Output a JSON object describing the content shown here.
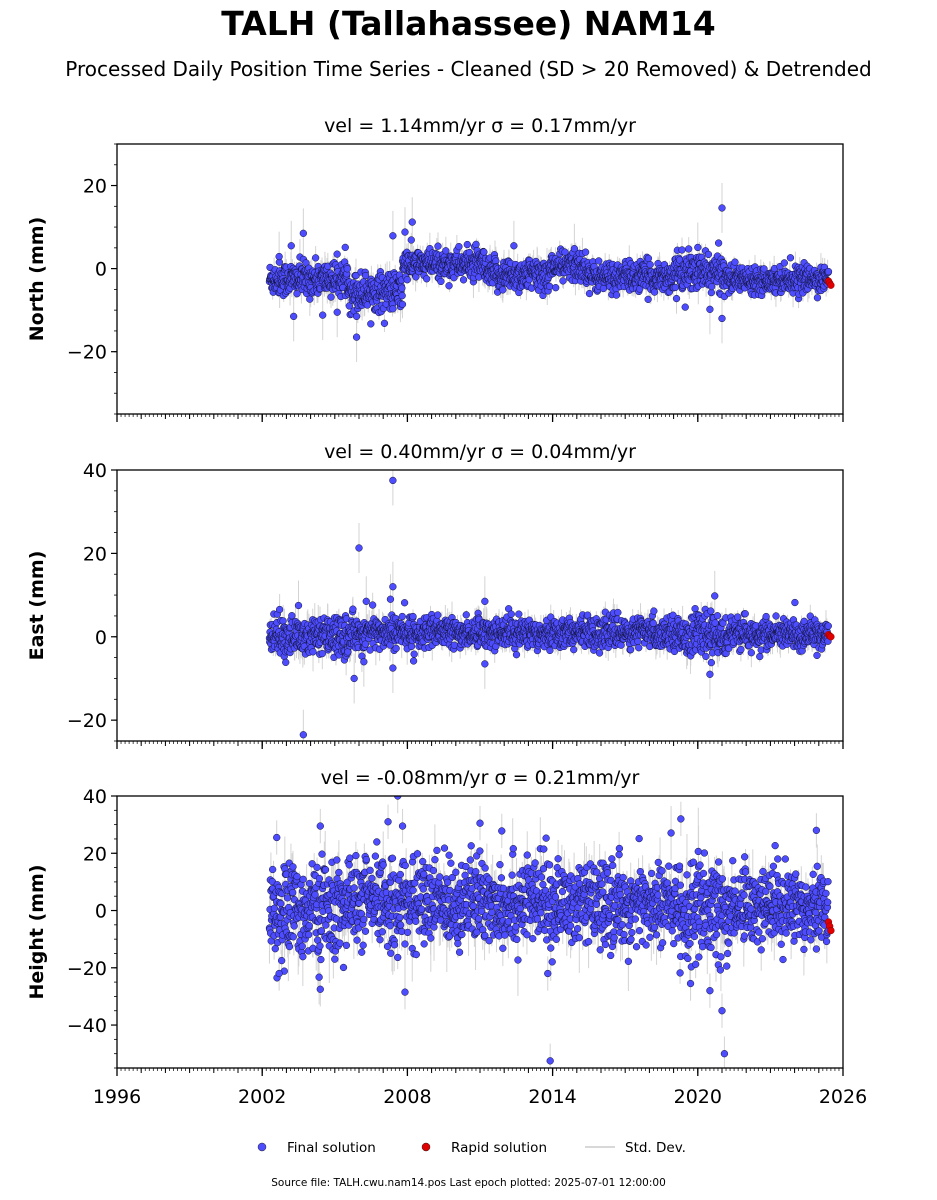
{
  "title": "TALH (Tallahassee) NAM14",
  "subtitle": "Processed Daily Position Time Series - Cleaned (SD > 20 Removed) & Detrended",
  "footer": "Source file: TALH.cwu.nam14.pos  Last epoch plotted: 2025-07-01 12:00:00",
  "colors": {
    "final": "#4d4dff",
    "rapid": "#e00000",
    "stddev": "#cccccc",
    "edge": "#111133"
  },
  "legend": [
    {
      "name": "Final solution",
      "marker": "circle",
      "color": "#4d4dff"
    },
    {
      "name": "Rapid solution",
      "marker": "circle",
      "color": "#e00000"
    },
    {
      "name": "Std. Dev.",
      "marker": "line",
      "color": "#cccccc"
    }
  ],
  "chart_data": [
    {
      "type": "scatter",
      "panel_title": "vel = 1.14mm/yr   σ = 0.17mm/yr",
      "ylabel": "North (mm)",
      "xlim": [
        1996,
        2026
      ],
      "ylim": [
        -35,
        30
      ],
      "yticks": [
        20,
        0,
        -20
      ],
      "ytick_labels": [
        "20",
        "0",
        "−20"
      ],
      "xticks": [
        1996,
        2002,
        2008,
        2014,
        2020,
        2026
      ],
      "series_segments": [
        {
          "start": 2002.3,
          "end": 2005.6,
          "mean": -2.5,
          "spread": 2.0
        },
        {
          "start": 2005.6,
          "end": 2007.8,
          "mean": -5.5,
          "spread": 2.3
        },
        {
          "start": 2007.8,
          "end": 2011.2,
          "mean": 1.0,
          "spread": 1.8
        },
        {
          "start": 2011.2,
          "end": 2013.9,
          "mean": -1.5,
          "spread": 2.0
        },
        {
          "start": 2013.9,
          "end": 2015.5,
          "mean": 0.5,
          "spread": 1.8
        },
        {
          "start": 2015.5,
          "end": 2019.0,
          "mean": -2.0,
          "spread": 1.8
        },
        {
          "start": 2019.0,
          "end": 2021.2,
          "mean": -1.0,
          "spread": 2.2
        },
        {
          "start": 2021.2,
          "end": 2025.4,
          "mean": -2.5,
          "spread": 1.5
        }
      ],
      "outliers": [
        {
          "x": 2002.7,
          "y": 2.9
        },
        {
          "x": 2003.2,
          "y": 5.5
        },
        {
          "x": 2003.7,
          "y": 8.5
        },
        {
          "x": 2003.3,
          "y": -11.5
        },
        {
          "x": 2004.5,
          "y": -11.2
        },
        {
          "x": 2005.1,
          "y": -10.5
        },
        {
          "x": 2005.9,
          "y": -16.5
        },
        {
          "x": 2005.9,
          "y": -11.5
        },
        {
          "x": 2007.4,
          "y": 7.9
        },
        {
          "x": 2007.9,
          "y": 8.8
        },
        {
          "x": 2008.2,
          "y": 11.2
        },
        {
          "x": 2012.4,
          "y": 5.5
        },
        {
          "x": 2014.9,
          "y": 4.8
        },
        {
          "x": 2020.0,
          "y": 5.1
        },
        {
          "x": 2020.5,
          "y": -9.8
        },
        {
          "x": 2021.0,
          "y": -12.0
        },
        {
          "x": 2021.0,
          "y": 14.6
        }
      ],
      "rapid_points": [
        {
          "x": 2025.4,
          "y": -3.0
        },
        {
          "x": 2025.45,
          "y": -3.5
        },
        {
          "x": 2025.5,
          "y": -4.0
        }
      ]
    },
    {
      "type": "scatter",
      "panel_title": "vel = 0.40mm/yr   σ = 0.04mm/yr",
      "ylabel": "East (mm)",
      "xlim": [
        1996,
        2026
      ],
      "ylim": [
        -25,
        40
      ],
      "yticks": [
        40,
        20,
        0,
        -20
      ],
      "ytick_labels": [
        "40",
        "20",
        "0",
        "−20"
      ],
      "xticks": [
        1996,
        2002,
        2008,
        2014,
        2020,
        2026
      ],
      "series_segments": [
        {
          "start": 2002.3,
          "end": 2005.7,
          "mean": 0.0,
          "spread": 2.2
        },
        {
          "start": 2005.7,
          "end": 2008.5,
          "mean": 1.0,
          "spread": 2.0
        },
        {
          "start": 2008.5,
          "end": 2019.3,
          "mean": 1.0,
          "spread": 1.8
        },
        {
          "start": 2019.3,
          "end": 2021.3,
          "mean": 0.5,
          "spread": 2.4
        },
        {
          "start": 2021.3,
          "end": 2025.4,
          "mean": 0.5,
          "spread": 1.8
        }
      ],
      "outliers": [
        {
          "x": 2003.5,
          "y": 7.5
        },
        {
          "x": 2003.7,
          "y": -23.5
        },
        {
          "x": 2005.8,
          "y": -10.0
        },
        {
          "x": 2006.0,
          "y": 21.3
        },
        {
          "x": 2006.3,
          "y": 8.5
        },
        {
          "x": 2006.2,
          "y": -6.0
        },
        {
          "x": 2007.4,
          "y": 37.5
        },
        {
          "x": 2007.4,
          "y": 12.0
        },
        {
          "x": 2007.3,
          "y": 9.0
        },
        {
          "x": 2007.4,
          "y": -7.5
        },
        {
          "x": 2011.2,
          "y": 8.5
        },
        {
          "x": 2011.2,
          "y": -6.5
        },
        {
          "x": 2020.7,
          "y": 9.8
        },
        {
          "x": 2020.5,
          "y": -9.0
        }
      ],
      "rapid_points": [
        {
          "x": 2025.4,
          "y": 0.5
        },
        {
          "x": 2025.45,
          "y": 0.2
        },
        {
          "x": 2025.5,
          "y": 0.0
        }
      ]
    },
    {
      "type": "scatter",
      "panel_title": "vel = -0.08mm/yr   σ = 0.21mm/yr",
      "ylabel": "Height (mm)",
      "xlim": [
        1996,
        2026
      ],
      "ylim": [
        -55,
        40
      ],
      "yticks": [
        40,
        20,
        0,
        -20,
        -40
      ],
      "ytick_labels": [
        "40",
        "20",
        "0",
        "−20",
        "−40"
      ],
      "xticks": [
        1996,
        2002,
        2008,
        2014,
        2020,
        2026
      ],
      "xtick_labels": [
        "1996",
        "2002",
        "2008",
        "2014",
        "2020",
        "2026"
      ],
      "series_segments": [
        {
          "start": 2002.3,
          "end": 2005.5,
          "mean": 0.0,
          "spread": 8.0
        },
        {
          "start": 2005.5,
          "end": 2014.0,
          "mean": 3.0,
          "spread": 7.5
        },
        {
          "start": 2014.0,
          "end": 2019.3,
          "mean": 2.0,
          "spread": 7.0
        },
        {
          "start": 2019.3,
          "end": 2021.3,
          "mean": -1.0,
          "spread": 9.0
        },
        {
          "start": 2021.3,
          "end": 2025.4,
          "mean": 2.0,
          "spread": 6.5
        }
      ],
      "outliers": [
        {
          "x": 2002.6,
          "y": 25.5
        },
        {
          "x": 2002.7,
          "y": -22.0
        },
        {
          "x": 2004.4,
          "y": 29.5
        },
        {
          "x": 2004.4,
          "y": -27.5
        },
        {
          "x": 2007.2,
          "y": 31.0
        },
        {
          "x": 2007.6,
          "y": 40.0
        },
        {
          "x": 2007.8,
          "y": 29.5
        },
        {
          "x": 2007.9,
          "y": -28.5
        },
        {
          "x": 2011.0,
          "y": 30.5
        },
        {
          "x": 2011.9,
          "y": 27.8
        },
        {
          "x": 2013.8,
          "y": -22.0
        },
        {
          "x": 2013.9,
          "y": -52.5
        },
        {
          "x": 2019.3,
          "y": 32.0
        },
        {
          "x": 2019.7,
          "y": -25.5
        },
        {
          "x": 2020.5,
          "y": -28.0
        },
        {
          "x": 2021.0,
          "y": -35.0
        },
        {
          "x": 2021.1,
          "y": -50.0
        },
        {
          "x": 2024.9,
          "y": 28.0
        }
      ],
      "rapid_points": [
        {
          "x": 2025.4,
          "y": -4.0
        },
        {
          "x": 2025.45,
          "y": -5.5
        },
        {
          "x": 2025.5,
          "y": -7.0
        }
      ]
    }
  ]
}
